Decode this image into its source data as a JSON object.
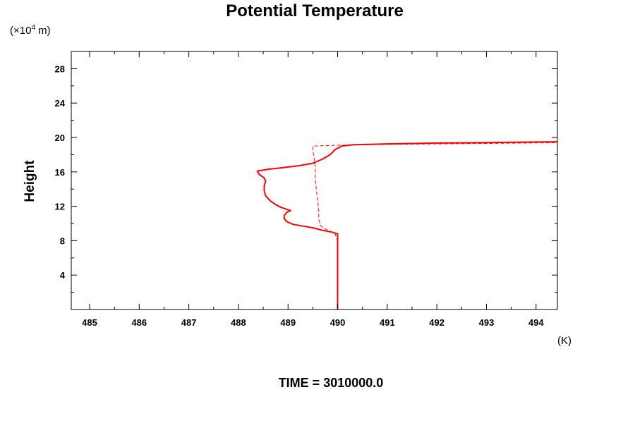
{
  "chart_data": {
    "type": "line",
    "title": "Potential Temperature",
    "ylabel": "Height",
    "y_unit_prefix": "(×10",
    "y_unit_exp": "4",
    "y_unit_suffix": " m)",
    "x_unit": "(K)",
    "footer": "TIME = 3010000.0",
    "xlim": [
      484.63,
      494.43
    ],
    "ylim": [
      0,
      30
    ],
    "x_ticks": [
      "485",
      "486",
      "487",
      "488",
      "489",
      "490",
      "491",
      "492",
      "493",
      "494"
    ],
    "y_ticks": [
      "4",
      "8",
      "12",
      "16",
      "20",
      "24",
      "28"
    ],
    "grid": false,
    "colors": {
      "series": "#ff0000",
      "axis": "#000000"
    },
    "series": [
      {
        "style": "solid",
        "points": [
          [
            490.0,
            0.0
          ],
          [
            490.0,
            2.0
          ],
          [
            490.0,
            4.0
          ],
          [
            490.0,
            6.0
          ],
          [
            490.0,
            8.0
          ],
          [
            490.0,
            8.8
          ],
          [
            489.88,
            9.0
          ],
          [
            489.7,
            9.2
          ],
          [
            489.5,
            9.5
          ],
          [
            489.3,
            9.7
          ],
          [
            489.1,
            9.9
          ],
          [
            488.98,
            10.2
          ],
          [
            488.92,
            10.6
          ],
          [
            488.93,
            11.0
          ],
          [
            488.98,
            11.3
          ],
          [
            489.05,
            11.5
          ],
          [
            488.95,
            11.7
          ],
          [
            488.85,
            11.9
          ],
          [
            488.75,
            12.2
          ],
          [
            488.65,
            12.6
          ],
          [
            488.55,
            13.2
          ],
          [
            488.52,
            13.8
          ],
          [
            488.52,
            14.4
          ],
          [
            488.55,
            14.9
          ],
          [
            488.52,
            15.3
          ],
          [
            488.42,
            15.7
          ],
          [
            488.38,
            16.1
          ],
          [
            488.6,
            16.3
          ],
          [
            488.9,
            16.5
          ],
          [
            489.2,
            16.7
          ],
          [
            489.5,
            17.0
          ],
          [
            489.7,
            17.5
          ],
          [
            489.85,
            18.0
          ],
          [
            489.95,
            18.6
          ],
          [
            490.08,
            19.0
          ],
          [
            490.3,
            19.15
          ],
          [
            491.0,
            19.25
          ],
          [
            492.0,
            19.35
          ],
          [
            493.0,
            19.4
          ],
          [
            494.43,
            19.5
          ]
        ]
      },
      {
        "style": "dashed",
        "points": [
          [
            490.0,
            0.0
          ],
          [
            490.0,
            4.0
          ],
          [
            490.0,
            8.0
          ],
          [
            489.95,
            8.8
          ],
          [
            489.85,
            9.1
          ],
          [
            489.72,
            9.4
          ],
          [
            489.65,
            9.8
          ],
          [
            489.62,
            10.5
          ],
          [
            489.62,
            11.5
          ],
          [
            489.6,
            12.5
          ],
          [
            489.58,
            13.5
          ],
          [
            489.56,
            14.5
          ],
          [
            489.55,
            15.5
          ],
          [
            489.55,
            16.5
          ],
          [
            489.53,
            17.5
          ],
          [
            489.5,
            18.5
          ],
          [
            489.5,
            19.0
          ],
          [
            490.0,
            19.1
          ],
          [
            490.5,
            19.15
          ],
          [
            491.0,
            19.2
          ],
          [
            492.0,
            19.25
          ],
          [
            493.0,
            19.3
          ],
          [
            494.43,
            19.4
          ]
        ]
      }
    ]
  }
}
